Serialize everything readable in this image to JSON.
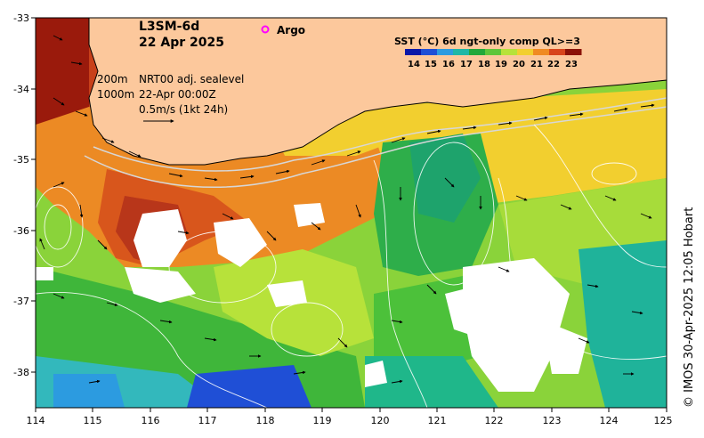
{
  "map": {
    "title_line1": "L3SM-6d",
    "date": "22 Apr 2025",
    "argo_label": "Argo",
    "legend_title": "SST (°C) 6d ngt-only comp QL>=3",
    "colorbar_ticks": [
      "14",
      "15",
      "16",
      "17",
      "18",
      "19",
      "20",
      "21",
      "22",
      "23"
    ],
    "colorbar_colors": [
      "#0b18a8",
      "#1f4fd6",
      "#2c9be0",
      "#1fb7a6",
      "#22a83a",
      "#5fc63a",
      "#b7e23a",
      "#f2cf2f",
      "#f08a22",
      "#d8451c",
      "#8b1208"
    ],
    "contour_labels": [
      "200m",
      "1000m"
    ],
    "current_info": [
      "NRT00 adj. sealevel",
      "22-Apr 00:00Z",
      "0.5m/s (1kt 24h)"
    ],
    "lon_ticks": [
      "114",
      "115",
      "116",
      "117",
      "118",
      "119",
      "120",
      "121",
      "122",
      "123",
      "124",
      "125"
    ],
    "lat_ticks": [
      "-33",
      "-34",
      "-35",
      "-36",
      "-37",
      "-38"
    ],
    "credit": "© IMOS 30-Apr-2025 12:05 Hobart",
    "land_color": "#fcc89c",
    "cloud_color": "#ffffff"
  }
}
